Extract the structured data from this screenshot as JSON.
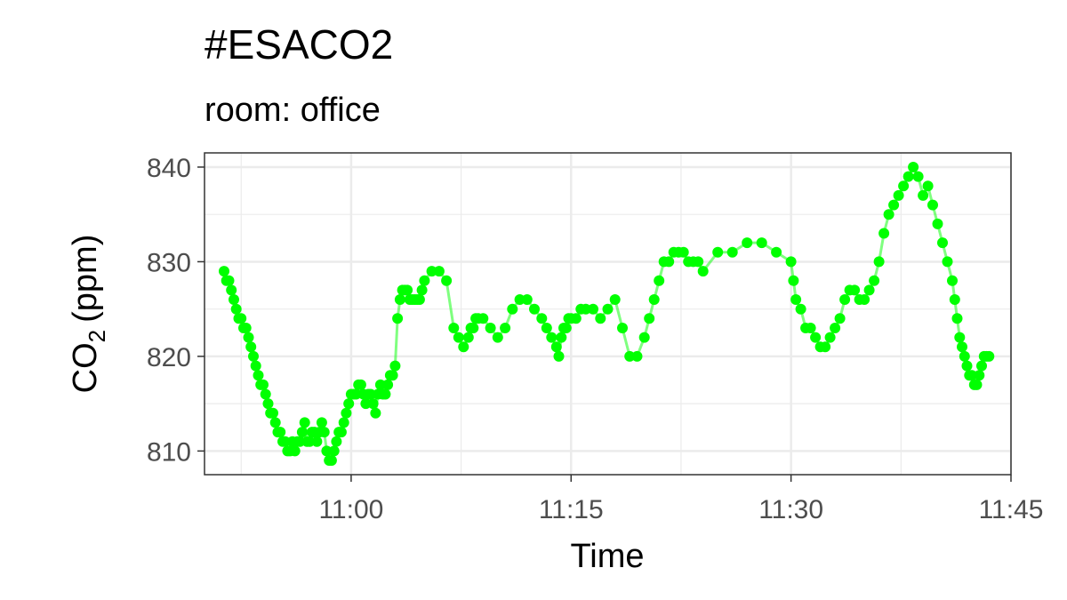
{
  "chart_data": {
    "type": "line",
    "title": "#ESACO2",
    "subtitle": "room: office",
    "xlabel": "Time",
    "ylabel": {
      "main": "CO",
      "subscript": "2",
      "unit": "(ppm)"
    },
    "xlim": [
      "10:50",
      "11:45"
    ],
    "ylim": [
      807.5,
      841.5
    ],
    "x_ticks": [
      "11:00",
      "11:15",
      "11:30",
      "11:45"
    ],
    "y_ticks": [
      810,
      820,
      830,
      840
    ],
    "grid": true,
    "series": [
      {
        "color": "#00ff00",
        "x": [
          "10:51:20",
          "10:51:30",
          "10:51:40",
          "10:51:50",
          "10:52:00",
          "10:52:10",
          "10:52:20",
          "10:52:30",
          "10:52:40",
          "10:52:50",
          "10:53:00",
          "10:53:10",
          "10:53:20",
          "10:53:30",
          "10:53:40",
          "10:53:50",
          "10:54:00",
          "10:54:10",
          "10:54:20",
          "10:54:30",
          "10:54:40",
          "10:54:50",
          "10:55:00",
          "10:55:10",
          "10:55:20",
          "10:55:30",
          "10:55:40",
          "10:55:50",
          "10:56:00",
          "10:56:10",
          "10:56:20",
          "10:56:30",
          "10:56:40",
          "10:56:50",
          "10:57:00",
          "10:57:10",
          "10:57:20",
          "10:57:30",
          "10:57:40",
          "10:57:50",
          "10:58:00",
          "10:58:10",
          "10:58:20",
          "10:58:30",
          "10:58:40",
          "10:58:50",
          "10:59:00",
          "10:59:10",
          "10:59:20",
          "10:59:30",
          "10:59:40",
          "10:59:50",
          "11:00:00",
          "11:00:10",
          "11:00:20",
          "11:00:30",
          "11:00:40",
          "11:00:50",
          "11:01:00",
          "11:01:10",
          "11:01:20",
          "11:01:30",
          "11:01:40",
          "11:01:50",
          "11:02:00",
          "11:02:10",
          "11:02:20",
          "11:02:30",
          "11:02:40",
          "11:02:50",
          "11:03:00",
          "11:03:10",
          "11:03:20",
          "11:03:30",
          "11:03:40",
          "11:03:50",
          "11:04:00",
          "11:04:10",
          "11:04:20",
          "11:04:30",
          "11:04:40",
          "11:04:50",
          "11:05:00",
          "11:05:30",
          "11:06:00",
          "11:06:30",
          "11:07:00",
          "11:07:20",
          "11:07:40",
          "11:08:00",
          "11:08:10",
          "11:08:20",
          "11:08:30",
          "11:08:40",
          "11:09:00",
          "11:09:30",
          "11:10:00",
          "11:10:30",
          "11:11:00",
          "11:11:30",
          "11:12:00",
          "11:12:30",
          "11:13:00",
          "11:13:20",
          "11:13:40",
          "11:14:00",
          "11:14:10",
          "11:14:20",
          "11:14:30",
          "11:14:40",
          "11:14:50",
          "11:15:00",
          "11:15:20",
          "11:15:40",
          "11:16:00",
          "11:16:30",
          "11:17:00",
          "11:17:30",
          "11:18:00",
          "11:18:30",
          "11:19:00",
          "11:19:30",
          "11:20:00",
          "11:20:20",
          "11:20:40",
          "11:21:00",
          "11:21:20",
          "11:21:40",
          "11:22:00",
          "11:22:20",
          "11:22:40",
          "11:23:00",
          "11:23:20",
          "11:23:40",
          "11:24:00",
          "11:25:00",
          "11:26:00",
          "11:27:00",
          "11:28:00",
          "11:29:00",
          "11:30:00",
          "11:30:10",
          "11:30:20",
          "11:30:40",
          "11:31:00",
          "11:31:20",
          "11:31:40",
          "11:32:00",
          "11:32:20",
          "11:32:40",
          "11:33:00",
          "11:33:20",
          "11:33:40",
          "11:34:00",
          "11:34:20",
          "11:34:40",
          "11:35:00",
          "11:35:20",
          "11:35:40",
          "11:36:00",
          "11:36:20",
          "11:36:40",
          "11:37:00",
          "11:37:20",
          "11:37:40",
          "11:38:00",
          "11:38:20",
          "11:38:40",
          "11:39:00",
          "11:39:20",
          "11:39:40",
          "11:40:00",
          "11:40:20",
          "11:40:40",
          "11:41:00",
          "11:41:10",
          "11:41:20",
          "11:41:30",
          "11:41:40",
          "11:41:50",
          "11:42:00",
          "11:42:10",
          "11:42:20",
          "11:42:30",
          "11:42:40",
          "11:42:50",
          "11:43:00",
          "11:43:10",
          "11:43:20",
          "11:43:30"
        ],
        "values": [
          829,
          828,
          828,
          827,
          826,
          825,
          824,
          824,
          823,
          823,
          822,
          821,
          820,
          819,
          818,
          817,
          817,
          816,
          815,
          814,
          814,
          813,
          812,
          812,
          811,
          811,
          810,
          810,
          811,
          810,
          811,
          811,
          812,
          813,
          811,
          811,
          812,
          812,
          811,
          812,
          813,
          812,
          810,
          809,
          809,
          810,
          811,
          812,
          812,
          813,
          814,
          815,
          816,
          816,
          816,
          817,
          817,
          816,
          815,
          816,
          816,
          815,
          814,
          816,
          817,
          816,
          816,
          817,
          818,
          818,
          819,
          824,
          826,
          827,
          827,
          827,
          826,
          826,
          826,
          826,
          826,
          827,
          828,
          829,
          829,
          828,
          823,
          822,
          821,
          822,
          823,
          823,
          824,
          824,
          824,
          823,
          822,
          823,
          825,
          826,
          826,
          825,
          824,
          823,
          822,
          821,
          820,
          822,
          823,
          823,
          824,
          824,
          824,
          825,
          825,
          825,
          824,
          825,
          826,
          823,
          820,
          820,
          822,
          824,
          826,
          828,
          830,
          830,
          831,
          831,
          831,
          830,
          830,
          830,
          829,
          831,
          831,
          832,
          832,
          831,
          830,
          828,
          826,
          825,
          823,
          823,
          822,
          821,
          821,
          822,
          823,
          824,
          826,
          827,
          827,
          826,
          826,
          827,
          828,
          830,
          833,
          835,
          836,
          837,
          838,
          839,
          840,
          839,
          837,
          838,
          836,
          834,
          832,
          830,
          828,
          826,
          824,
          822,
          821,
          820,
          819,
          818,
          818,
          817,
          817,
          818,
          819,
          820,
          820,
          820
        ]
      }
    ]
  }
}
